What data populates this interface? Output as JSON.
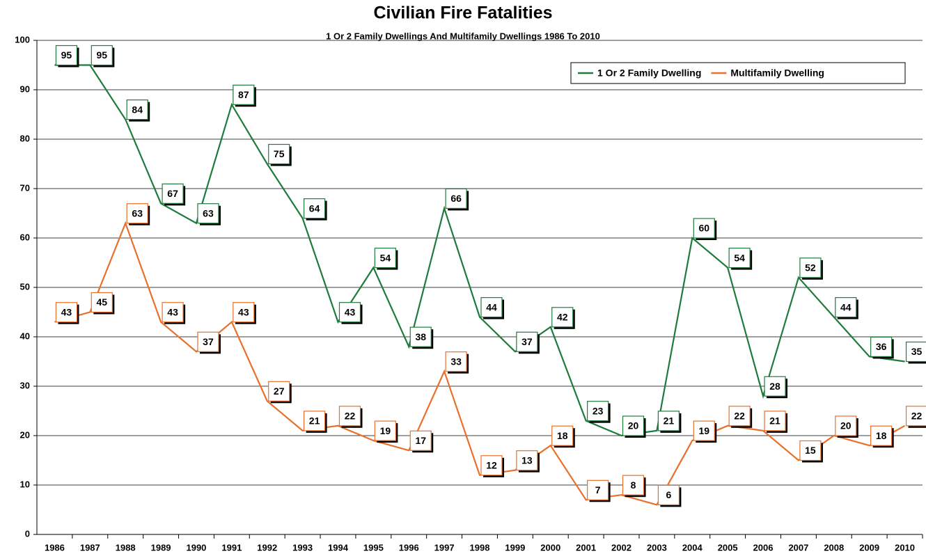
{
  "chart_data": {
    "type": "line",
    "title": "Civilian Fire Fatalities",
    "subtitle": "1 Or 2 Family Dwellings And Multifamily Dwellings 1986 To 2010",
    "categories": [
      "1986",
      "1987",
      "1988",
      "1989",
      "1990",
      "1991",
      "1992",
      "1993",
      "1994",
      "1995",
      "1996",
      "1997",
      "1998",
      "1999",
      "2000",
      "2001",
      "2002",
      "2003",
      "2004",
      "2005",
      "2006",
      "2007",
      "2008",
      "2009",
      "2010"
    ],
    "series": [
      {
        "name": "1 Or 2 Family Dwelling",
        "color": "#1e7b3c",
        "values": [
          95,
          95,
          84,
          67,
          63,
          87,
          75,
          64,
          43,
          54,
          38,
          66,
          44,
          37,
          42,
          23,
          20,
          21,
          60,
          54,
          28,
          52,
          44,
          36,
          35
        ]
      },
      {
        "name": "Multifamily Dwelling",
        "color": "#e8702a",
        "values": [
          43,
          45,
          63,
          43,
          37,
          43,
          27,
          21,
          22,
          19,
          17,
          33,
          12,
          13,
          18,
          7,
          8,
          6,
          19,
          22,
          21,
          15,
          20,
          18,
          22
        ]
      }
    ],
    "ylim": [
      0,
      100
    ],
    "yticks": [
      0,
      10,
      20,
      30,
      40,
      50,
      60,
      70,
      80,
      90,
      100
    ],
    "grid": true,
    "legend": "top-right"
  }
}
